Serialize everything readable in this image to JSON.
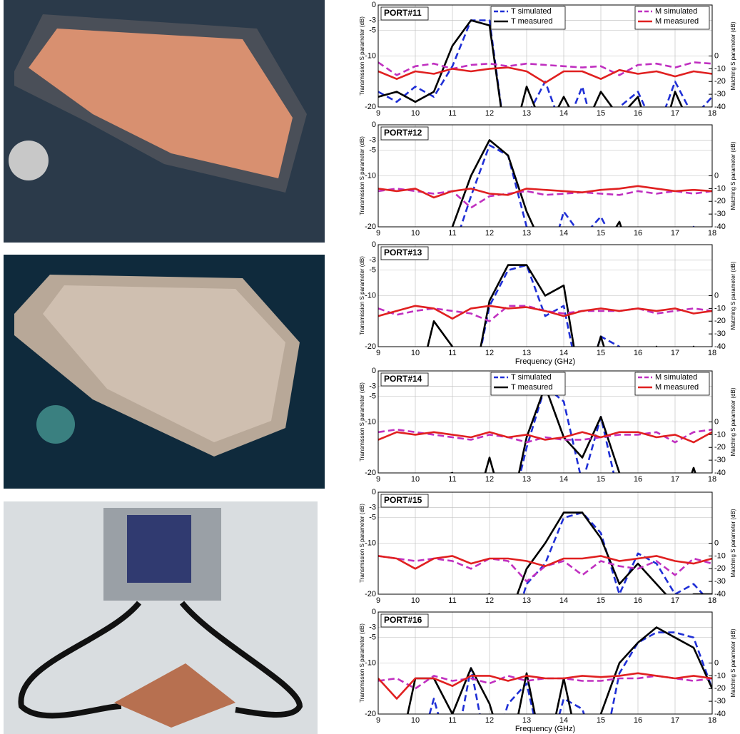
{
  "chart_data": [
    {
      "type": "line",
      "title": "PORT#11",
      "x": [
        9,
        9.5,
        10,
        10.5,
        11,
        11.5,
        12,
        12.5,
        13,
        13.5,
        14,
        14.5,
        15,
        15.5,
        16,
        16.5,
        17,
        17.5,
        18
      ],
      "xlim": [
        9,
        18
      ],
      "xticks": [
        9,
        10,
        11,
        12,
        13,
        14,
        15,
        16,
        17,
        18
      ],
      "ylim": [
        -20,
        0
      ],
      "yticks": [
        -20,
        -10,
        -5,
        -3,
        0
      ],
      "y2lim": [
        -40,
        40
      ],
      "y2ticks": [
        -40,
        -30,
        -20,
        -10,
        0
      ],
      "ylabel": "Transmission S parameter (dB)",
      "y2label": "Matching S parameter (dB)",
      "grid": true,
      "legend": true,
      "series": [
        {
          "name": "T simulated",
          "color": "#1f2fd6",
          "style": "dashed",
          "values": [
            -17,
            -19,
            -16,
            -18,
            -12,
            -3,
            -3,
            -30,
            -22,
            -15,
            -25,
            -16,
            -30,
            -20,
            -17,
            -25,
            -15,
            -22,
            -18
          ]
        },
        {
          "name": "T measured",
          "color": "#000000",
          "style": "solid",
          "values": [
            -18,
            -17,
            -19,
            -17,
            -8,
            -3,
            -4,
            -30,
            -16,
            -25,
            -18,
            -25,
            -17,
            -22,
            -18,
            -30,
            -17,
            -25,
            -20
          ]
        },
        {
          "name": "M simulated",
          "color": "#c030c0",
          "style": "dashed",
          "axis": "y2",
          "values": [
            -5,
            -15,
            -8,
            -6,
            -10,
            -7,
            -6,
            -8,
            -6,
            -7,
            -8,
            -9,
            -8,
            -15,
            -7,
            -6,
            -9,
            -5,
            -6
          ]
        },
        {
          "name": "M measured",
          "color": "#e02020",
          "style": "solid",
          "axis": "y2",
          "values": [
            -12,
            -18,
            -12,
            -14,
            -10,
            -12,
            -10,
            -9,
            -12,
            -21,
            -12,
            -12,
            -18,
            -11,
            -14,
            -12,
            -16,
            -12,
            -14
          ]
        }
      ]
    },
    {
      "type": "line",
      "title": "PORT#12",
      "x": [
        9,
        9.5,
        10,
        10.5,
        11,
        11.5,
        12,
        12.5,
        13,
        13.5,
        14,
        14.5,
        15,
        15.5,
        16,
        16.5,
        17,
        17.5,
        18
      ],
      "xlim": [
        9,
        18
      ],
      "xticks": [
        9,
        10,
        11,
        12,
        13,
        14,
        15,
        16,
        17,
        18
      ],
      "ylim": [
        -20,
        0
      ],
      "yticks": [
        -20,
        -10,
        -5,
        -3,
        0
      ],
      "y2lim": [
        -40,
        40
      ],
      "y2ticks": [
        -40,
        -30,
        -20,
        -10,
        0
      ],
      "ylabel": "Transmission S parameter (dB)",
      "y2label": "Matching S parameter (dB)",
      "grid": true,
      "series": [
        {
          "color": "#1f2fd6",
          "style": "dashed",
          "values": [
            -30,
            -30,
            -30,
            -30,
            -25,
            -14,
            -4,
            -6,
            -20,
            -30,
            -17,
            -22,
            -18,
            -25,
            -22,
            -30,
            -25,
            -20,
            -25
          ]
        },
        {
          "color": "#000000",
          "style": "solid",
          "values": [
            -30,
            -30,
            -30,
            -30,
            -20,
            -10,
            -3,
            -6,
            -17,
            -25,
            -30,
            -21,
            -25,
            -19,
            -30,
            -30,
            -30,
            -30,
            -30
          ]
        },
        {
          "color": "#c030c0",
          "style": "dashed",
          "axis": "y2",
          "values": [
            -12,
            -10,
            -12,
            -14,
            -12,
            -25,
            -16,
            -14,
            -12,
            -15,
            -14,
            -13,
            -14,
            -15,
            -12,
            -14,
            -12,
            -14,
            -12
          ]
        },
        {
          "color": "#e02020",
          "style": "solid",
          "axis": "y2",
          "values": [
            -10,
            -12,
            -10,
            -17,
            -12,
            -10,
            -14,
            -15,
            -10,
            -11,
            -12,
            -13,
            -11,
            -10,
            -8,
            -10,
            -12,
            -11,
            -12
          ]
        }
      ]
    },
    {
      "type": "line",
      "title": "PORT#13",
      "x": [
        9,
        9.5,
        10,
        10.5,
        11,
        11.5,
        12,
        12.5,
        13,
        13.5,
        14,
        14.5,
        15,
        15.5,
        16,
        16.5,
        17,
        17.5,
        18
      ],
      "xlim": [
        9,
        18
      ],
      "xticks": [
        9,
        10,
        11,
        12,
        13,
        14,
        15,
        16,
        17,
        18
      ],
      "ylim": [
        -20,
        0
      ],
      "yticks": [
        -20,
        -10,
        -5,
        -3,
        0
      ],
      "y2lim": [
        -40,
        40
      ],
      "y2ticks": [
        -40,
        -30,
        -20,
        -10,
        0
      ],
      "ylabel": "Transmission S parameter (dB)",
      "y2label": "Matching S parameter (dB)",
      "xlabel": "Frequency (GHz)",
      "grid": true,
      "series": [
        {
          "color": "#1f2fd6",
          "style": "dashed",
          "values": [
            -30,
            -30,
            -30,
            -30,
            -20,
            -30,
            -12,
            -5,
            -4,
            -14,
            -12,
            -30,
            -18,
            -20,
            -25,
            -22,
            -20,
            -25,
            -20
          ]
        },
        {
          "color": "#000000",
          "style": "solid",
          "values": [
            -30,
            -30,
            -30,
            -15,
            -20,
            -30,
            -11,
            -4,
            -4,
            -10,
            -8,
            -30,
            -18,
            -30,
            -25,
            -20,
            -30,
            -20,
            -30
          ]
        },
        {
          "color": "#c030c0",
          "style": "dashed",
          "axis": "y2",
          "values": [
            -10,
            -15,
            -12,
            -10,
            -12,
            -14,
            -20,
            -8,
            -8,
            -12,
            -14,
            -12,
            -12,
            -12,
            -10,
            -14,
            -12,
            -10,
            -12
          ]
        },
        {
          "color": "#e02020",
          "style": "solid",
          "axis": "y2",
          "values": [
            -16,
            -12,
            -8,
            -10,
            -18,
            -10,
            -8,
            -10,
            -9,
            -12,
            -16,
            -12,
            -10,
            -12,
            -10,
            -12,
            -10,
            -14,
            -12
          ]
        }
      ]
    },
    {
      "type": "line",
      "title": "PORT#14",
      "x": [
        9,
        9.5,
        10,
        10.5,
        11,
        11.5,
        12,
        12.5,
        13,
        13.5,
        14,
        14.5,
        15,
        15.5,
        16,
        16.5,
        17,
        17.5,
        18
      ],
      "xlim": [
        9,
        18
      ],
      "xticks": [
        9,
        10,
        11,
        12,
        13,
        14,
        15,
        16,
        17,
        18
      ],
      "ylim": [
        -20,
        0
      ],
      "yticks": [
        -20,
        -10,
        -5,
        -3,
        0
      ],
      "y2lim": [
        -40,
        40
      ],
      "y2ticks": [
        -40,
        -30,
        -20,
        -10,
        0
      ],
      "ylabel": "Transmission S parameter (dB)",
      "y2label": "Matching S parameter (dB)",
      "grid": true,
      "legend": true,
      "series": [
        {
          "name": "T simulated",
          "color": "#1f2fd6",
          "style": "dashed",
          "values": [
            -30,
            -30,
            -30,
            -30,
            -30,
            -30,
            -28,
            -30,
            -15,
            -3,
            -6,
            -22,
            -9,
            -25,
            -30,
            -30,
            -30,
            -30,
            -30
          ]
        },
        {
          "name": "T measured",
          "color": "#000000",
          "style": "solid",
          "values": [
            -30,
            -21,
            -21,
            -21,
            -20,
            -30,
            -17,
            -30,
            -13,
            -3,
            -13,
            -17,
            -9,
            -20,
            -30,
            -30,
            -30,
            -19,
            -30
          ]
        },
        {
          "name": "M simulated",
          "color": "#c030c0",
          "style": "dashed",
          "axis": "y2",
          "values": [
            -8,
            -6,
            -8,
            -10,
            -12,
            -14,
            -10,
            -12,
            -16,
            -12,
            -14,
            -14,
            -12,
            -10,
            -10,
            -8,
            -16,
            -8,
            -6
          ]
        },
        {
          "name": "M measured",
          "color": "#e02020",
          "style": "solid",
          "axis": "y2",
          "values": [
            -14,
            -8,
            -10,
            -8,
            -10,
            -12,
            -8,
            -12,
            -10,
            -14,
            -12,
            -8,
            -12,
            -8,
            -8,
            -12,
            -10,
            -16,
            -8
          ]
        }
      ]
    },
    {
      "type": "line",
      "title": "PORT#15",
      "x": [
        9,
        9.5,
        10,
        10.5,
        11,
        11.5,
        12,
        12.5,
        13,
        13.5,
        14,
        14.5,
        15,
        15.5,
        16,
        16.5,
        17,
        17.5,
        18
      ],
      "xlim": [
        9,
        18
      ],
      "xticks": [
        9,
        10,
        11,
        12,
        13,
        14,
        15,
        16,
        17,
        18
      ],
      "ylim": [
        -20,
        0
      ],
      "yticks": [
        -20,
        -10,
        -5,
        -3,
        0
      ],
      "y2lim": [
        -40,
        40
      ],
      "y2ticks": [
        -40,
        -30,
        -20,
        -10,
        0
      ],
      "ylabel": "Transmission S parameter (dB)",
      "y2label": "Matching S parameter (dB)",
      "grid": true,
      "series": [
        {
          "color": "#1f2fd6",
          "style": "dashed",
          "values": [
            -30,
            -30,
            -30,
            -30,
            -30,
            -30,
            -25,
            -30,
            -18,
            -14,
            -5,
            -4,
            -8,
            -20,
            -12,
            -14,
            -20,
            -18,
            -22
          ]
        },
        {
          "color": "#000000",
          "style": "solid",
          "values": [
            -30,
            -30,
            -30,
            -21,
            -30,
            -21,
            -20,
            -25,
            -15,
            -10,
            -4,
            -4,
            -9,
            -18,
            -14,
            -18,
            -22,
            -20,
            -20
          ]
        },
        {
          "color": "#c030c0",
          "style": "dashed",
          "axis": "y2",
          "values": [
            -10,
            -12,
            -14,
            -12,
            -14,
            -20,
            -12,
            -14,
            -30,
            -18,
            -14,
            -25,
            -14,
            -18,
            -20,
            -14,
            -25,
            -12,
            -16
          ]
        },
        {
          "color": "#e02020",
          "style": "solid",
          "axis": "y2",
          "values": [
            -10,
            -12,
            -20,
            -12,
            -10,
            -16,
            -12,
            -12,
            -14,
            -18,
            -12,
            -12,
            -10,
            -14,
            -12,
            -10,
            -14,
            -16,
            -12
          ]
        }
      ]
    },
    {
      "type": "line",
      "title": "PORT#16",
      "x": [
        9,
        9.5,
        10,
        10.5,
        11,
        11.5,
        12,
        12.5,
        13,
        13.5,
        14,
        14.5,
        15,
        15.5,
        16,
        16.5,
        17,
        17.5,
        18
      ],
      "xlim": [
        9,
        18
      ],
      "xticks": [
        9,
        10,
        11,
        12,
        13,
        14,
        15,
        16,
        17,
        18
      ],
      "ylim": [
        -20,
        0
      ],
      "yticks": [
        -20,
        -10,
        -5,
        -3,
        0
      ],
      "y2lim": [
        -40,
        40
      ],
      "y2ticks": [
        -40,
        -30,
        -20,
        -10,
        0
      ],
      "ylabel": "Transmission S parameter (dB)",
      "y2label": "Matching S parameter (dB)",
      "xlabel": "Frequency (GHz)",
      "grid": true,
      "series": [
        {
          "color": "#1f2fd6",
          "style": "dashed",
          "values": [
            -30,
            -30,
            -30,
            -17,
            -30,
            -11,
            -30,
            -18,
            -14,
            -30,
            -17,
            -19,
            -30,
            -12,
            -6,
            -4,
            -4,
            -5,
            -15
          ]
        },
        {
          "color": "#000000",
          "style": "solid",
          "values": [
            -20,
            -30,
            -13,
            -13,
            -20,
            -11,
            -18,
            -30,
            -12,
            -30,
            -13,
            -30,
            -20,
            -10,
            -6,
            -3,
            -5,
            -7,
            -15
          ]
        },
        {
          "color": "#c030c0",
          "style": "dashed",
          "axis": "y2",
          "values": [
            -14,
            -12,
            -20,
            -10,
            -14,
            -12,
            -16,
            -10,
            -14,
            -12,
            -12,
            -14,
            -14,
            -12,
            -12,
            -10,
            -12,
            -14,
            -12
          ]
        },
        {
          "color": "#e02020",
          "style": "solid",
          "axis": "y2",
          "values": [
            -12,
            -28,
            -12,
            -12,
            -18,
            -10,
            -10,
            -14,
            -10,
            -12,
            -12,
            -10,
            -11,
            -10,
            -8,
            -10,
            -12,
            -10,
            -12
          ]
        }
      ]
    }
  ]
}
